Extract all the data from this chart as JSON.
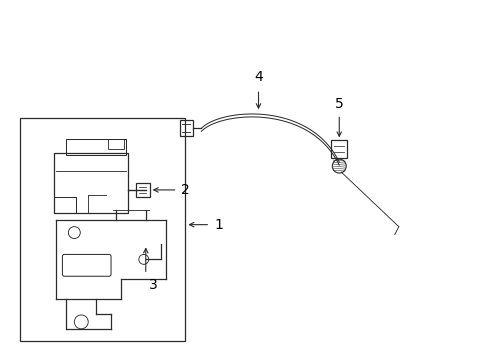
{
  "bg_color": "#ffffff",
  "line_color": "#2a2a2a",
  "label_color": "#000000",
  "fig_w": 4.89,
  "fig_h": 3.6,
  "dpi": 100
}
